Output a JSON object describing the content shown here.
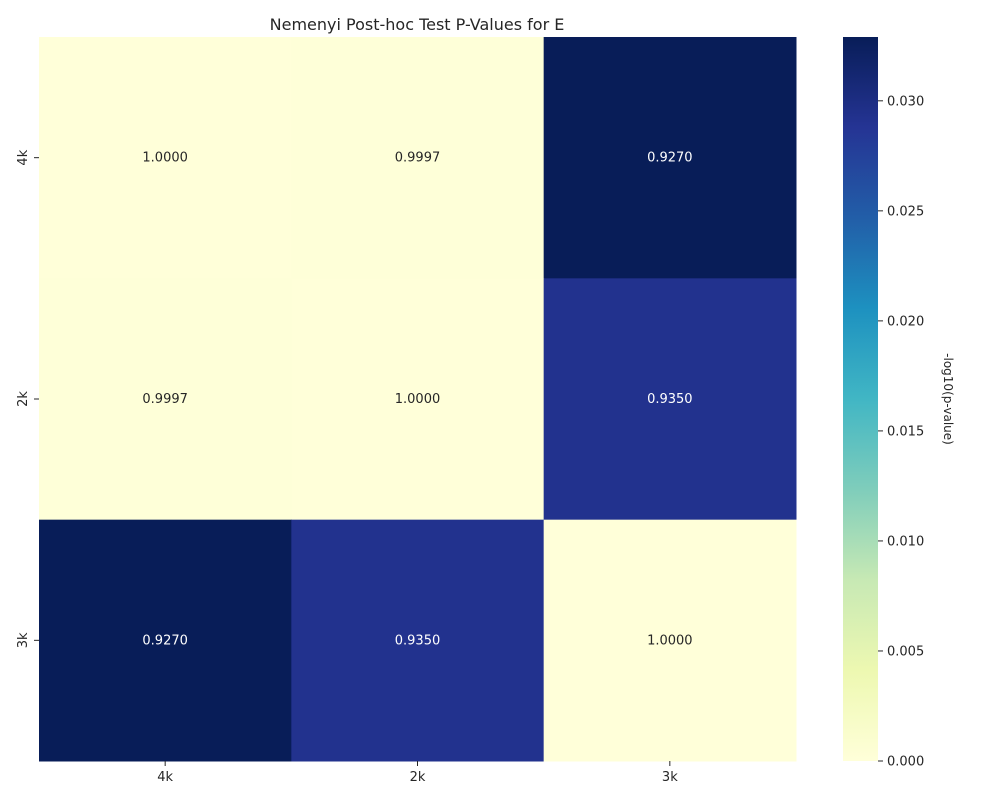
{
  "chart_data": {
    "type": "heatmap",
    "title": "Nemenyi Post-hoc Test P-Values for E",
    "x_categories": [
      "4k",
      "2k",
      "3k"
    ],
    "y_categories": [
      "4k",
      "2k",
      "3k"
    ],
    "p_values": [
      [
        1.0,
        0.9997,
        0.927
      ],
      [
        0.9997,
        1.0,
        0.935
      ],
      [
        0.927,
        0.935,
        1.0
      ]
    ],
    "cell_labels": [
      [
        "1.0000",
        "0.9997",
        "0.9270"
      ],
      [
        "0.9997",
        "1.0000",
        "0.9350"
      ],
      [
        "0.9270",
        "0.9350",
        "1.0000"
      ]
    ],
    "color_values": [
      [
        0.0,
        0.00013,
        0.0329
      ],
      [
        0.00013,
        0.0,
        0.0292
      ],
      [
        0.0329,
        0.0292,
        0.0
      ]
    ],
    "colorbar": {
      "label": "-log10(p-value)",
      "range": [
        0.0,
        0.0329
      ],
      "ticks": [
        0.0,
        0.005,
        0.01,
        0.015,
        0.02,
        0.025,
        0.03
      ],
      "tick_labels": [
        "0.000",
        "0.005",
        "0.010",
        "0.015",
        "0.020",
        "0.025",
        "0.030"
      ]
    },
    "colormap": [
      "#ffffd9",
      "#edf8b1",
      "#c7e9b4",
      "#7fcdbb",
      "#41b6c4",
      "#1d91c0",
      "#225ea8",
      "#253494",
      "#081d58"
    ]
  }
}
